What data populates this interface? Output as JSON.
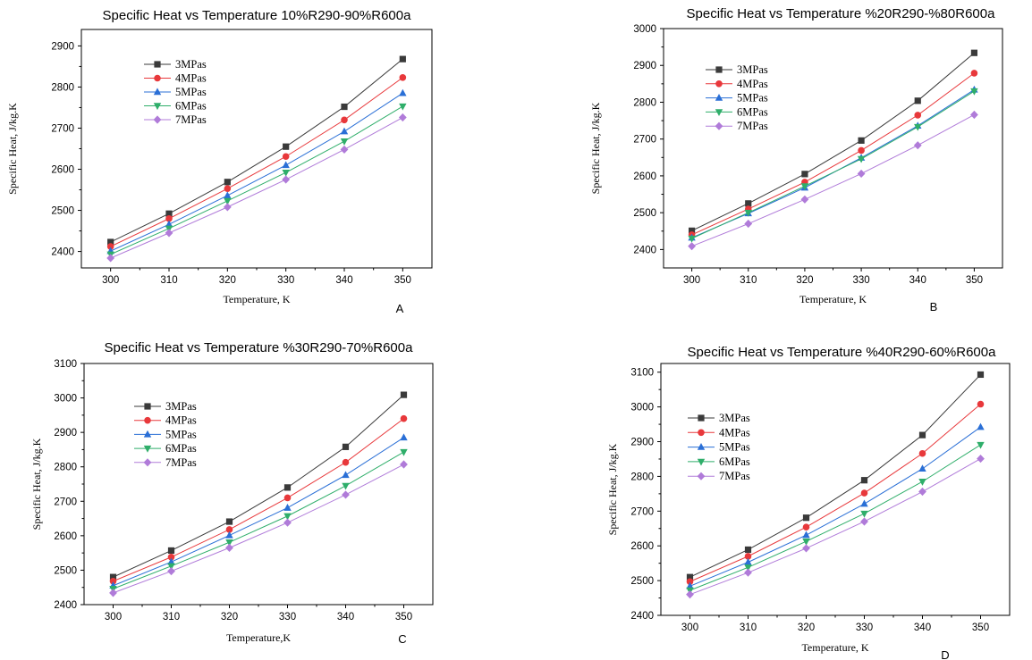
{
  "colors": {
    "3MPas": "#3a3a3a",
    "4MPas": "#e8383b",
    "5MPas": "#2a6fd6",
    "6MPas": "#2fae6a",
    "7MPas": "#b07bd9"
  },
  "chart_data": [
    {
      "type": "line",
      "panel_label": "A",
      "title": "Specific Heat vs Temperature 10%R290-90%R600a",
      "xlabel": "Temperature, K",
      "ylabel": "Specific Heat, J/kg.K",
      "x": [
        300,
        310,
        320,
        330,
        340,
        350
      ],
      "xticks": [
        300,
        310,
        320,
        330,
        340,
        350
      ],
      "yticks": [
        2400,
        2500,
        2600,
        2700,
        2800,
        2900
      ],
      "xlim": [
        295,
        355
      ],
      "ylim": [
        2360,
        2940
      ],
      "legend": "top-left",
      "series": [
        {
          "name": "3MPas",
          "marker": "square",
          "values": [
            2423,
            2492,
            2569,
            2655,
            2752,
            2868
          ]
        },
        {
          "name": "4MPas",
          "marker": "circle",
          "values": [
            2412,
            2480,
            2553,
            2631,
            2720,
            2823
          ]
        },
        {
          "name": "5MPas",
          "marker": "triangle-up",
          "values": [
            2401,
            2466,
            2536,
            2610,
            2692,
            2785
          ]
        },
        {
          "name": "6MPas",
          "marker": "triangle-down",
          "values": [
            2393,
            2456,
            2523,
            2592,
            2668,
            2753
          ]
        },
        {
          "name": "7MPas",
          "marker": "diamond",
          "values": [
            2384,
            2445,
            2508,
            2575,
            2648,
            2726
          ]
        }
      ]
    },
    {
      "type": "line",
      "panel_label": "B",
      "title": "Specific Heat vs Temperature %20R290-%80R600a",
      "xlabel": "Temperature, K",
      "ylabel": "Specific Heat, J/kg.K",
      "x": [
        300,
        310,
        320,
        330,
        340,
        350
      ],
      "xticks": [
        300,
        310,
        320,
        330,
        340,
        350
      ],
      "yticks": [
        2400,
        2500,
        2600,
        2700,
        2800,
        2900,
        3000
      ],
      "xlim": [
        295,
        355
      ],
      "ylim": [
        2350,
        3000
      ],
      "legend": "top-left",
      "series": [
        {
          "name": "3MPas",
          "marker": "square",
          "values": [
            2451,
            2525,
            2605,
            2696,
            2804,
            2934
          ]
        },
        {
          "name": "4MPas",
          "marker": "circle",
          "values": [
            2440,
            2510,
            2583,
            2669,
            2765,
            2879
          ]
        },
        {
          "name": "5MPas",
          "marker": "triangle-up",
          "values": [
            2432,
            2498,
            2568,
            2649,
            2736,
            2834
          ]
        },
        {
          "name": "6MPas",
          "marker": "triangle-down",
          "values": [
            2430,
            2500,
            2572,
            2646,
            2733,
            2830
          ]
        },
        {
          "name": "7MPas",
          "marker": "diamond",
          "values": [
            2409,
            2470,
            2536,
            2606,
            2683,
            2766
          ]
        }
      ]
    },
    {
      "type": "line",
      "panel_label": "C",
      "title": "Specific Heat vs Temperature %30R290-70%R600a",
      "xlabel": "Temperature,K",
      "ylabel": "Specific Heat, J/kg.K",
      "x": [
        300,
        310,
        320,
        330,
        340,
        350
      ],
      "xticks": [
        300,
        310,
        320,
        330,
        340,
        350
      ],
      "yticks": [
        2400,
        2500,
        2600,
        2700,
        2800,
        2900,
        3000,
        3100
      ],
      "xlim": [
        295,
        355
      ],
      "ylim": [
        2400,
        3100
      ],
      "legend": "top-left",
      "series": [
        {
          "name": "3MPas",
          "marker": "square",
          "values": [
            2480,
            2557,
            2641,
            2740,
            2858,
            3009
          ]
        },
        {
          "name": "4MPas",
          "marker": "circle",
          "values": [
            2468,
            2538,
            2618,
            2710,
            2813,
            2940
          ]
        },
        {
          "name": "5MPas",
          "marker": "triangle-up",
          "values": [
            2455,
            2524,
            2601,
            2681,
            2776,
            2885
          ]
        },
        {
          "name": "6MPas",
          "marker": "triangle-down",
          "values": [
            2446,
            2512,
            2581,
            2657,
            2745,
            2843
          ]
        },
        {
          "name": "7MPas",
          "marker": "diamond",
          "values": [
            2434,
            2497,
            2565,
            2638,
            2719,
            2807
          ]
        }
      ]
    },
    {
      "type": "line",
      "panel_label": "D",
      "title": "Specific Heat vs Temperature %40R290-60%R600a",
      "xlabel": "Temperature, K",
      "ylabel": "Specific Heat, J/kg.K",
      "x": [
        300,
        310,
        320,
        330,
        340,
        350
      ],
      "xticks": [
        300,
        310,
        320,
        330,
        340,
        350
      ],
      "yticks": [
        2400,
        2500,
        2600,
        2700,
        2800,
        2900,
        3000,
        3100
      ],
      "xlim": [
        295,
        355
      ],
      "ylim": [
        2400,
        3125
      ],
      "legend": "top-left",
      "series": [
        {
          "name": "3MPas",
          "marker": "square",
          "values": [
            2510,
            2589,
            2681,
            2789,
            2919,
            3093
          ]
        },
        {
          "name": "4MPas",
          "marker": "circle",
          "values": [
            2497,
            2570,
            2654,
            2752,
            2866,
            3008
          ]
        },
        {
          "name": "5MPas",
          "marker": "triangle-up",
          "values": [
            2484,
            2553,
            2631,
            2721,
            2822,
            2942
          ]
        },
        {
          "name": "6MPas",
          "marker": "triangle-down",
          "values": [
            2472,
            2538,
            2613,
            2693,
            2785,
            2891
          ]
        },
        {
          "name": "7MPas",
          "marker": "diamond",
          "values": [
            2460,
            2523,
            2593,
            2670,
            2756,
            2851
          ]
        }
      ]
    }
  ]
}
